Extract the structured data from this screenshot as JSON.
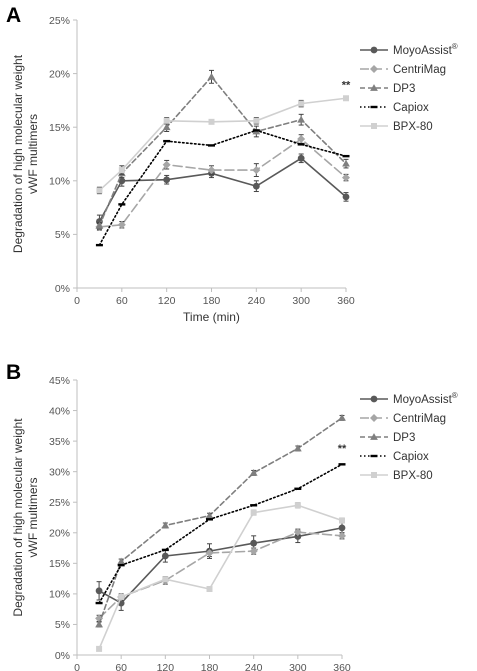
{
  "chart_data": [
    {
      "type": "line",
      "panel_letter": "A",
      "xlabel": "Time (min)",
      "ylabel": "Degradation of high molecular weight vWF multimers",
      "x": [
        30,
        60,
        120,
        180,
        240,
        300,
        360
      ],
      "x_ticks": [
        "0",
        "60",
        "120",
        "180",
        "240",
        "300",
        "360"
      ],
      "x_tick_values": [
        0,
        60,
        120,
        180,
        240,
        300,
        360
      ],
      "xlim": [
        0,
        360
      ],
      "ylim": [
        0,
        25
      ],
      "y_ticks": [
        "0%",
        "5%",
        "10%",
        "15%",
        "20%",
        "25%"
      ],
      "y_tick_values": [
        0,
        5,
        10,
        15,
        20,
        25
      ],
      "grid": false,
      "legend_position": "right",
      "annotations": [
        {
          "text": "**",
          "x": 360,
          "y": 18.6
        }
      ],
      "series": [
        {
          "name": "MoyoAssist",
          "superscript": "®",
          "color": "#595959",
          "dash": "solid",
          "marker": "circle",
          "values": [
            6.2,
            10.0,
            10.1,
            10.7,
            9.5,
            12.1,
            8.5
          ],
          "errors": [
            0.6,
            0.5,
            0.4,
            0.4,
            0.5,
            0.4,
            0.4
          ]
        },
        {
          "name": "CentriMag",
          "color": "#a6a6a6",
          "dash": "longdash",
          "marker": "diamond",
          "values": [
            5.7,
            5.9,
            11.5,
            11.0,
            11.0,
            13.9,
            10.3
          ],
          "errors": [
            0.3,
            0.3,
            0.4,
            0.4,
            0.6,
            0.4,
            0.3
          ]
        },
        {
          "name": "DP3",
          "color": "#7f7f7f",
          "dash": "dash",
          "marker": "triangle",
          "values": [
            5.8,
            10.7,
            15.0,
            19.7,
            14.6,
            15.7,
            11.6
          ],
          "errors": [
            0.3,
            0.4,
            0.4,
            0.6,
            0.5,
            0.5,
            0.4
          ]
        },
        {
          "name": "Capiox",
          "color": "#000000",
          "dash": "dot",
          "marker": "dash",
          "values": [
            4.0,
            7.8,
            13.7,
            13.3,
            14.7,
            13.4,
            12.3
          ],
          "errors": [
            0,
            0,
            0,
            0,
            0,
            0,
            0
          ]
        },
        {
          "name": "BPX-80",
          "color": "#d0d0d0",
          "dash": "solid",
          "marker": "square",
          "values": [
            9.1,
            11.0,
            15.6,
            15.5,
            15.6,
            17.2,
            17.7
          ],
          "errors": [
            0.3,
            0.4,
            0.3,
            0.2,
            0.3,
            0.3,
            0.1
          ]
        }
      ]
    },
    {
      "type": "line",
      "panel_letter": "B",
      "xlabel": "Time (min)",
      "ylabel": "Degradation of high molecular weight vWF multimers",
      "x": [
        30,
        60,
        120,
        180,
        240,
        300,
        360
      ],
      "x_ticks": [
        "0",
        "60",
        "120",
        "180",
        "240",
        "300",
        "360"
      ],
      "x_tick_values": [
        0,
        60,
        120,
        180,
        240,
        300,
        360
      ],
      "xlim": [
        0,
        360
      ],
      "ylim": [
        0,
        45
      ],
      "y_ticks": [
        "0%",
        "5%",
        "10%",
        "15%",
        "20%",
        "25%",
        "30%",
        "35%",
        "40%",
        "45%"
      ],
      "y_tick_values": [
        0,
        5,
        10,
        15,
        20,
        25,
        30,
        35,
        40,
        45
      ],
      "grid": false,
      "legend_position": "right",
      "annotations": [
        {
          "text": "**",
          "x": 360,
          "y": 33.2
        }
      ],
      "series": [
        {
          "name": "MoyoAssist",
          "superscript": "®",
          "color": "#595959",
          "dash": "solid",
          "marker": "circle",
          "values": [
            10.5,
            8.5,
            16.2,
            17.0,
            18.3,
            19.4,
            20.8
          ],
          "errors": [
            1.5,
            1.2,
            1.0,
            1.2,
            1.2,
            1.0,
            0.8
          ]
        },
        {
          "name": "CentriMag",
          "color": "#a6a6a6",
          "dash": "longdash",
          "marker": "diamond",
          "values": [
            6.0,
            9.5,
            12.2,
            16.7,
            17.0,
            20.1,
            19.5
          ],
          "errors": [
            0.5,
            0.5,
            0.6,
            0.6,
            0.5,
            0.5,
            0.5
          ]
        },
        {
          "name": "DP3",
          "color": "#7f7f7f",
          "dash": "dash",
          "marker": "triangle",
          "values": [
            5.0,
            15.3,
            21.2,
            22.8,
            29.8,
            33.8,
            38.8
          ],
          "errors": [
            0.4,
            0.4,
            0.4,
            0.4,
            0.4,
            0.4,
            0.4
          ]
        },
        {
          "name": "Capiox",
          "color": "#000000",
          "dash": "dot",
          "marker": "dash",
          "values": [
            8.5,
            14.7,
            17.2,
            22.2,
            24.5,
            27.2,
            31.2
          ],
          "errors": [
            0,
            0,
            0,
            0,
            0,
            0,
            0
          ]
        },
        {
          "name": "BPX-80",
          "color": "#d0d0d0",
          "dash": "solid",
          "marker": "square",
          "values": [
            1.0,
            9.5,
            12.4,
            10.8,
            23.3,
            24.5,
            22.0
          ],
          "errors": [
            0.3,
            0.4,
            0.4,
            0.4,
            0.4,
            0.4,
            0.4
          ]
        }
      ]
    }
  ]
}
